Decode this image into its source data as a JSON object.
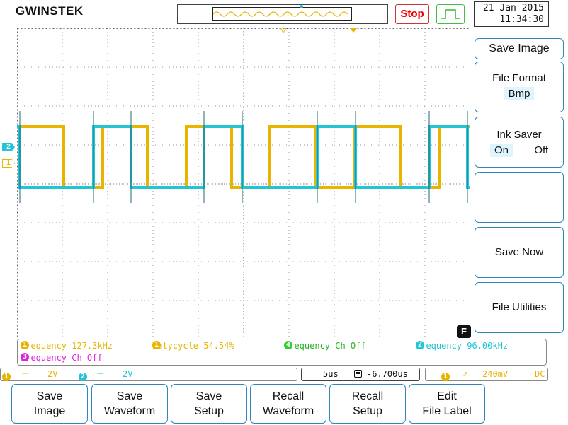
{
  "header": {
    "brand": "GWINSTEK",
    "run_status": "Stop",
    "date": "21 Jan 2015",
    "time": "11:34:30"
  },
  "channel_markers": {
    "ch2": "2",
    "ch1": "1"
  },
  "colors": {
    "ch1": "#e8b400",
    "ch2": "#22c4d6",
    "ch3": "#e020e0",
    "ch4": "#30d030",
    "accent": "#2f88b9"
  },
  "side_menu": {
    "title": "Save Image",
    "file_format_label": "File Format",
    "file_format_value": "Bmp",
    "ink_saver_label": "Ink Saver",
    "ink_on": "On",
    "ink_off": "Off",
    "save_now": "Save Now",
    "file_utilities": "File Utilities",
    "func_badge": "F"
  },
  "measurements": {
    "m1": {
      "num": "1",
      "text": "Frequency 127.3kHz"
    },
    "m2": {
      "num": "1",
      "text": "Dutycycle 54.54%"
    },
    "m3": {
      "num": "4",
      "text": "Frequency Ch Off"
    },
    "m4": {
      "num": "2",
      "text": "Frequency 96.00kHz"
    },
    "m5": {
      "num": "3",
      "text": "Frequency Ch Off"
    }
  },
  "status_bar": {
    "ch1_num": "1",
    "ch1_scale": "2V",
    "ch2_num": "2",
    "ch2_scale": "2V",
    "timebase": "5us",
    "position": "-6.700us",
    "trig_num": "1",
    "trig_level": "240mV",
    "coupling": "DC"
  },
  "bottom_menu": [
    {
      "line1": "Save",
      "line2": "Image"
    },
    {
      "line1": "Save",
      "line2": "Waveform"
    },
    {
      "line1": "Save",
      "line2": "Setup"
    },
    {
      "line1": "Recall",
      "line2": "Waveform"
    },
    {
      "line1": "Recall",
      "line2": "Setup"
    },
    {
      "line1": "Edit",
      "line2": "File Label"
    }
  ]
}
